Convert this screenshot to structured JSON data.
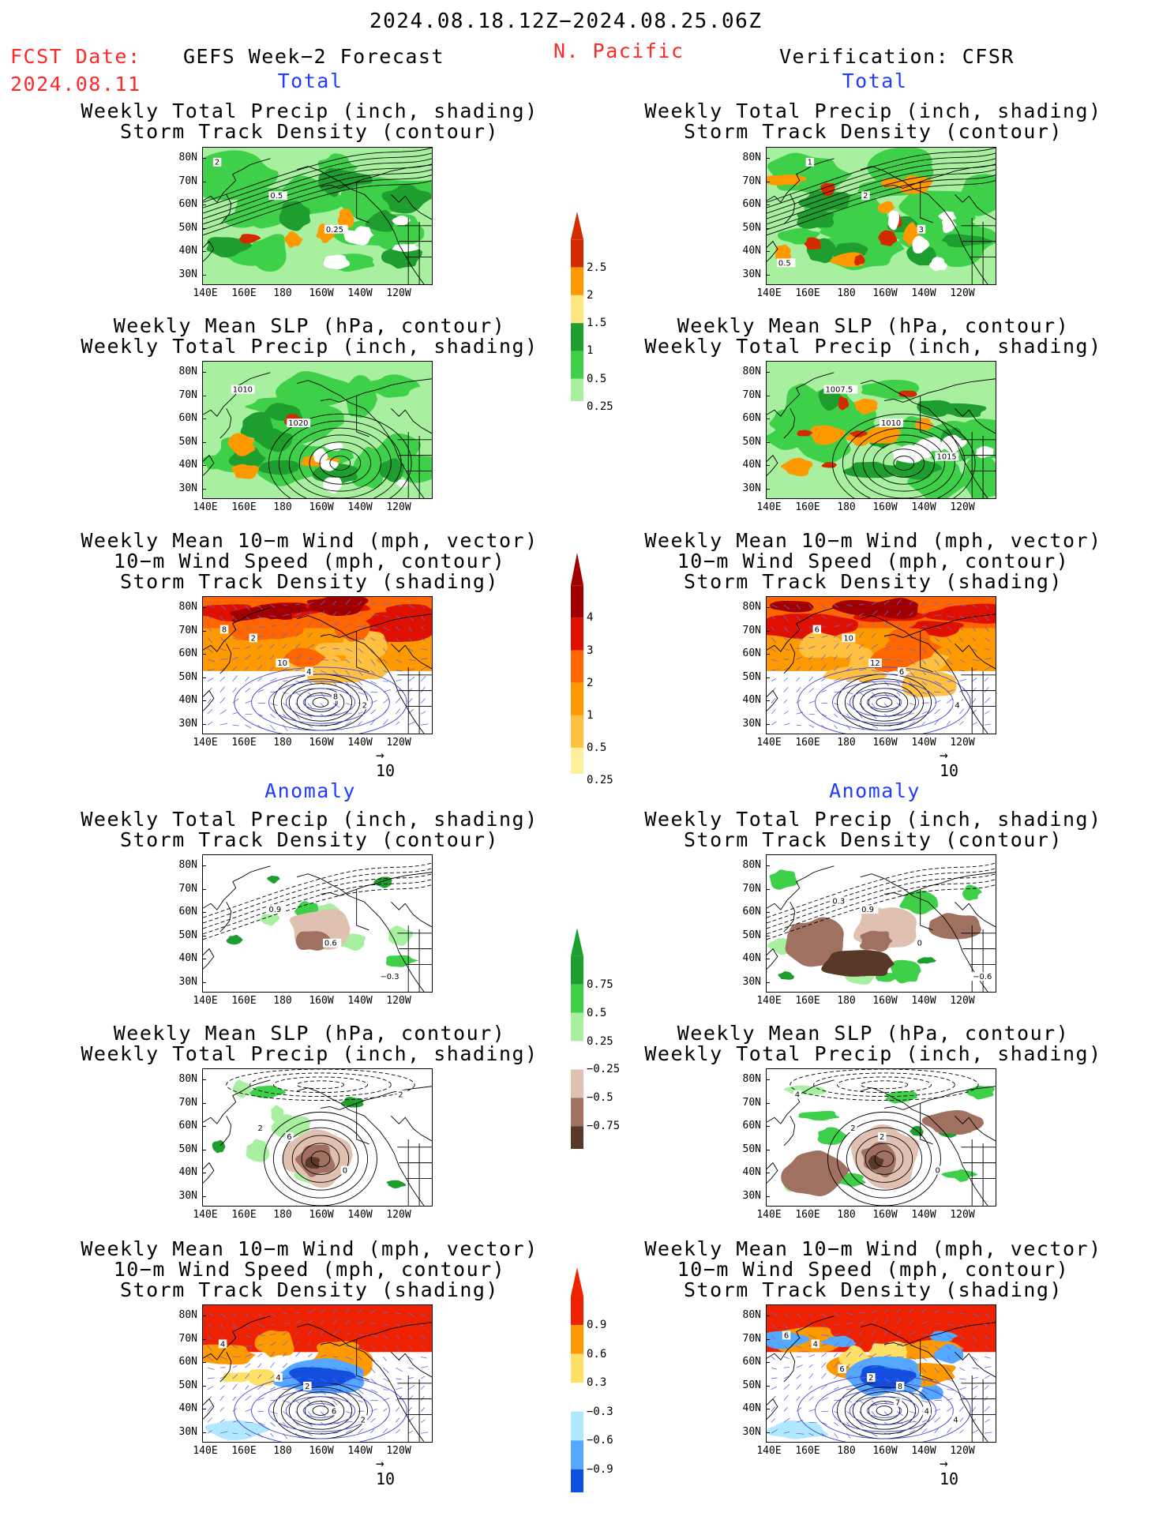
{
  "header": {
    "period": "2024.08.18.12Z−2024.08.25.06Z",
    "fcst_label": "FCST Date:",
    "fcst_date": "2024.08.11",
    "left_title": "GEFS Week−2 Forecast",
    "region": "N. Pacific",
    "right_title": "Verification: CFSR"
  },
  "sections": {
    "total": "Total",
    "anomaly": "Anomaly"
  },
  "panel_titles": {
    "precip_track": [
      "Weekly Total Precip (inch, shading)",
      "Storm Track Density (contour)"
    ],
    "slp_precip": [
      "Weekly Mean SLP (hPa, contour)",
      "Weekly Total Precip (inch, shading)"
    ],
    "wind_track": [
      "Weekly Mean 10−m Wind (mph, vector)",
      "10−m Wind Speed (mph, contour)",
      "Storm Track Density (shading)"
    ]
  },
  "axes": {
    "lat_ticks": [
      "80N",
      "70N",
      "60N",
      "50N",
      "40N",
      "30N"
    ],
    "lon_ticks": [
      "140E",
      "160E",
      "180",
      "160W",
      "140W",
      "120W"
    ]
  },
  "vector_ref": "10",
  "colorbars": {
    "precip_total": [
      "2.5",
      "2",
      "1.5",
      "1",
      "0.5",
      "0.25"
    ],
    "track_total": [
      "4",
      "3",
      "2",
      "1",
      "0.5",
      "0.25"
    ],
    "precip_anom": [
      "0.75",
      "0.5",
      "0.25",
      "−0.25",
      "−0.5",
      "−0.75"
    ],
    "track_anom": [
      "0.9",
      "0.6",
      "0.3",
      "−0.3",
      "−0.6",
      "−0.9"
    ]
  },
  "colors": {
    "precip_total": [
      "#d42a00",
      "#ff9900",
      "#ffe680",
      "#1f9e30",
      "#3fd04a",
      "#a8f0a0"
    ],
    "track_total": [
      "#a00000",
      "#e01000",
      "#ff6600",
      "#ff9900",
      "#ffc040",
      "#fff0a0"
    ],
    "precip_anom": [
      "#1f9e30",
      "#3fd04a",
      "#a8f0a0",
      "#e0c0b0",
      "#a07060",
      "#5a3828"
    ],
    "track_anom": [
      "#ee2200",
      "#ff9900",
      "#ffe066",
      "#b0e8ff",
      "#55a8ff",
      "#1050e0"
    ]
  },
  "contour_labels": {
    "fc_total_precip": [
      "2",
      "0.5",
      "0.25"
    ],
    "ob_total_precip": [
      "1",
      "2",
      "3",
      "0.5"
    ],
    "fc_total_slp": [
      "1010",
      "1020"
    ],
    "ob_total_slp": [
      "1007.5",
      "1010",
      "1015"
    ],
    "fc_total_wind": [
      "2",
      "4",
      "2",
      "8",
      "10",
      "8"
    ],
    "ob_total_wind": [
      "10",
      "6",
      "4",
      "6",
      "12"
    ],
    "fc_anom_precip": [
      "0.9",
      "0.6",
      "−0.3"
    ],
    "ob_anom_precip": [
      "0.9",
      "0",
      "−0.6",
      "0.3"
    ],
    "fc_anom_slp": [
      "6",
      "0",
      "2",
      "2"
    ],
    "ob_anom_slp": [
      "2",
      "0",
      "4",
      "2"
    ],
    "fc_anom_wind": [
      "2",
      "2",
      "4",
      "4",
      "6"
    ],
    "ob_anom_wind": [
      "8",
      "4",
      "4",
      "2",
      "4",
      "6",
      "6",
      "7"
    ]
  }
}
